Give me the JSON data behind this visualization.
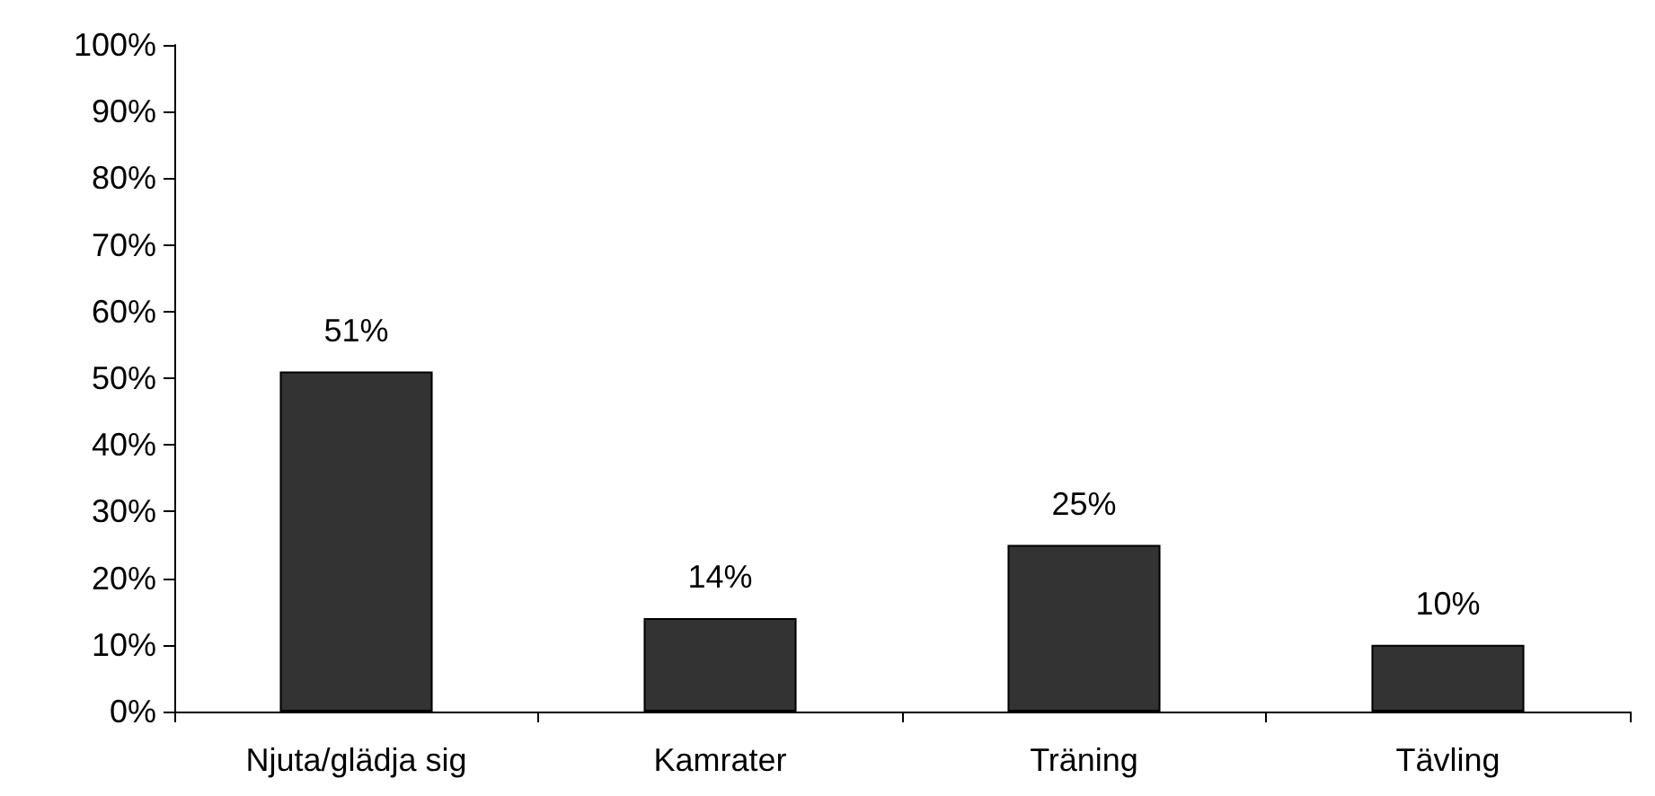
{
  "chart_data": {
    "type": "bar",
    "categories": [
      "Njuta/glädja sig",
      "Kamrater",
      "Träning",
      "Tävling"
    ],
    "values": [
      51,
      14,
      25,
      10
    ],
    "color": "#333333",
    "value_labels": [
      "51%",
      "14%",
      "25%",
      "10%"
    ],
    "ylim": [
      0,
      100
    ],
    "yticks": [
      {
        "value": 0,
        "label": "0%"
      },
      {
        "value": 10,
        "label": "10%"
      },
      {
        "value": 20,
        "label": "20%"
      },
      {
        "value": 30,
        "label": "30%"
      },
      {
        "value": 40,
        "label": "40%"
      },
      {
        "value": 50,
        "label": "50%"
      },
      {
        "value": 60,
        "label": "60%"
      },
      {
        "value": 70,
        "label": "70%"
      },
      {
        "value": 80,
        "label": "80%"
      },
      {
        "value": 90,
        "label": "90%"
      },
      {
        "value": 100,
        "label": "100%"
      }
    ],
    "grid": false
  }
}
